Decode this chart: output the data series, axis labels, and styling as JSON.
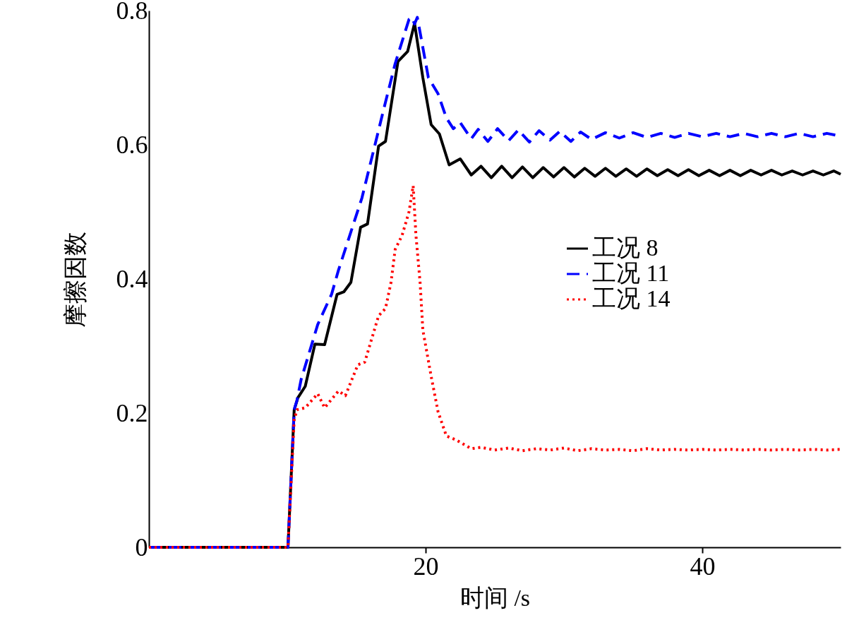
{
  "chart_data": {
    "type": "line",
    "xlabel": "时间 /s",
    "ylabel": "摩擦因数",
    "xlim": [
      0,
      50
    ],
    "xticks": [
      20,
      40
    ],
    "ylim": [
      0,
      0.8
    ],
    "yticks": [
      0,
      0.2,
      0.4,
      0.6,
      0.8
    ],
    "grid": false,
    "legend": "right",
    "series": [
      {
        "name": "工况 8",
        "color": "#000000",
        "line_style": "solid",
        "x": [
          0,
          10.05,
          10.5,
          10.77,
          11.3,
          12.0,
          12.7,
          13.6,
          14.1,
          14.6,
          15.3,
          15.8,
          16.6,
          17.1,
          18.0,
          18.7,
          19.2,
          19.8,
          20.4,
          21.0,
          21.7,
          22.5,
          23.3,
          24.0,
          24.75,
          25.5,
          26.25,
          27.0,
          27.75,
          28.5,
          29.25,
          30.0,
          30.75,
          31.5,
          32.25,
          33.0,
          33.75,
          34.5,
          35.25,
          36.0,
          36.75,
          37.5,
          38.25,
          39.0,
          39.75,
          40.5,
          41.25,
          42.0,
          42.75,
          43.5,
          44.25,
          45.0,
          45.75,
          46.5,
          47.25,
          48.0,
          48.75,
          49.5,
          50
        ],
        "values": [
          0,
          0,
          0.205,
          0.223,
          0.24,
          0.303,
          0.302,
          0.377,
          0.381,
          0.395,
          0.477,
          0.482,
          0.598,
          0.605,
          0.724,
          0.739,
          0.781,
          0.7,
          0.63,
          0.616,
          0.57,
          0.579,
          0.555,
          0.568,
          0.551,
          0.568,
          0.551,
          0.567,
          0.551,
          0.566,
          0.552,
          0.566,
          0.552,
          0.565,
          0.553,
          0.565,
          0.553,
          0.564,
          0.553,
          0.564,
          0.554,
          0.563,
          0.554,
          0.563,
          0.554,
          0.562,
          0.554,
          0.562,
          0.554,
          0.562,
          0.555,
          0.562,
          0.555,
          0.561,
          0.555,
          0.561,
          0.555,
          0.561,
          0.556
        ]
      },
      {
        "name": "工况 11",
        "color": "#0000ff",
        "line_style": "dashed",
        "x": [
          0,
          10.05,
          10.5,
          10.7,
          11.0,
          12.2,
          13.2,
          13.7,
          15.4,
          16.9,
          17.8,
          18.8,
          19.0,
          19.2,
          19.4,
          20.2,
          20.9,
          21.5,
          22.0,
          22.5,
          23.3,
          23.8,
          24.5,
          25.2,
          26.0,
          26.7,
          27.5,
          28.2,
          29.0,
          29.7,
          30.5,
          31.2,
          32,
          33,
          34,
          35,
          36,
          37,
          38,
          39,
          40,
          41,
          42,
          43,
          44,
          45,
          46,
          47,
          48,
          49,
          50
        ],
        "values": [
          0,
          0,
          0.205,
          0.219,
          0.25,
          0.332,
          0.377,
          0.413,
          0.521,
          0.647,
          0.721,
          0.787,
          0.79,
          0.78,
          0.79,
          0.7,
          0.676,
          0.64,
          0.624,
          0.633,
          0.609,
          0.623,
          0.605,
          0.624,
          0.606,
          0.622,
          0.604,
          0.621,
          0.607,
          0.62,
          0.605,
          0.619,
          0.608,
          0.618,
          0.61,
          0.618,
          0.611,
          0.617,
          0.611,
          0.617,
          0.612,
          0.617,
          0.612,
          0.617,
          0.612,
          0.617,
          0.612,
          0.617,
          0.612,
          0.617,
          0.613
        ]
      },
      {
        "name": "工况 14",
        "color": "#ff0000",
        "line_style": "dotted",
        "x": [
          0,
          10.05,
          10.5,
          10.7,
          11.3,
          12.2,
          12.7,
          13.7,
          14.2,
          15.1,
          15.6,
          16.6,
          17.1,
          17.5,
          17.8,
          18.3,
          18.8,
          19.1,
          19.3,
          19.6,
          19.8,
          20.4,
          20.9,
          21.5,
          22.2,
          23.3,
          24,
          25,
          26,
          27,
          28,
          29,
          30,
          31,
          32,
          33,
          34,
          35,
          36,
          37,
          38,
          39,
          40,
          41,
          42,
          43,
          44,
          45,
          46,
          47,
          48,
          49,
          50
        ],
        "values": [
          0,
          0,
          0.19,
          0.205,
          0.208,
          0.229,
          0.208,
          0.233,
          0.226,
          0.272,
          0.276,
          0.345,
          0.356,
          0.395,
          0.444,
          0.465,
          0.5,
          0.539,
          0.465,
          0.395,
          0.324,
          0.255,
          0.202,
          0.166,
          0.16,
          0.147,
          0.149,
          0.145,
          0.148,
          0.144,
          0.147,
          0.145,
          0.148,
          0.144,
          0.147,
          0.145,
          0.146,
          0.144,
          0.147,
          0.145,
          0.146,
          0.145,
          0.146,
          0.145,
          0.146,
          0.145,
          0.146,
          0.145,
          0.146,
          0.145,
          0.146,
          0.145,
          0.146
        ]
      }
    ]
  }
}
